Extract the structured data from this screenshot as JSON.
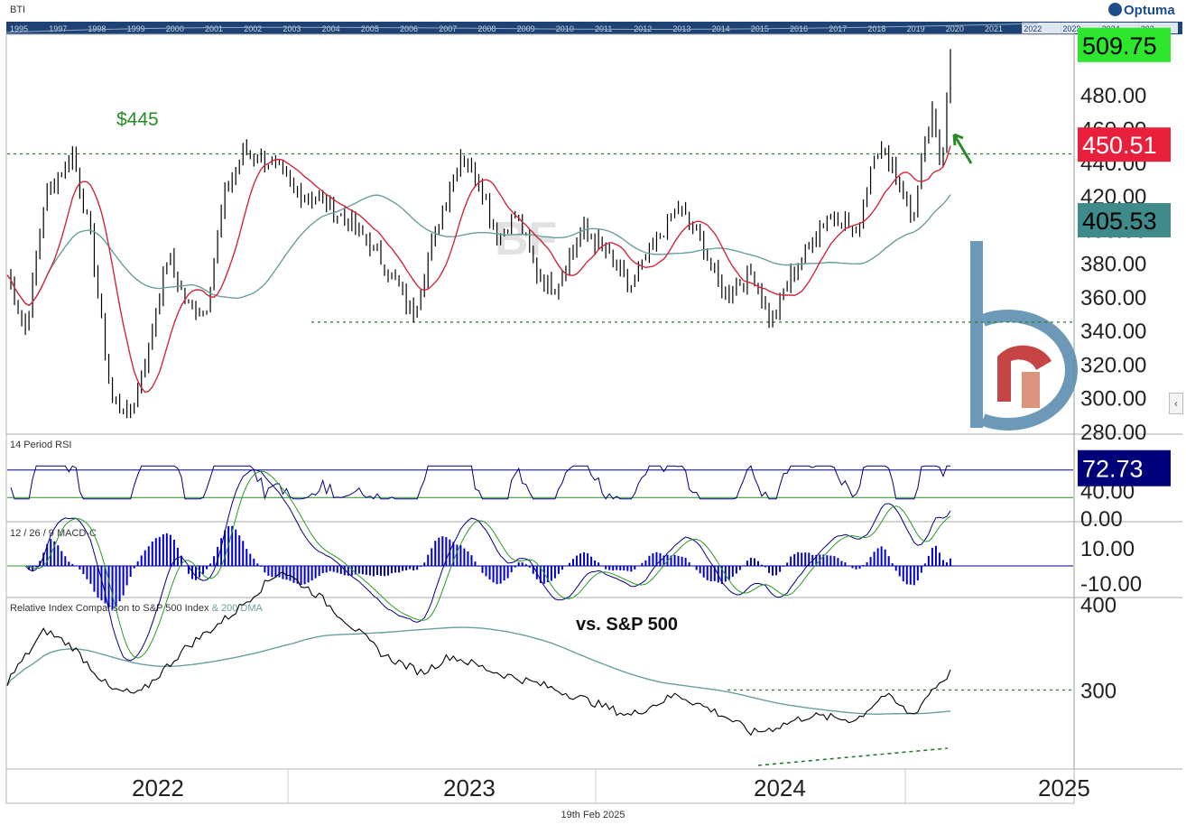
{
  "header": {
    "symbol": "BTI",
    "logo": "Optuma"
  },
  "footer": {
    "date": "19th Feb 2025"
  },
  "overview_years": [
    "1995",
    "1997",
    "1998",
    "1999",
    "2000",
    "2001",
    "2002",
    "2003",
    "2004",
    "2005",
    "2006",
    "2007",
    "2008",
    "2009",
    "2010",
    "2011",
    "2012",
    "2013",
    "2014",
    "2015",
    "2016",
    "2017",
    "2018",
    "2019",
    "2020",
    "2021",
    "2022",
    "2023",
    "2024",
    "202"
  ],
  "chart_data": [
    {
      "type": "line",
      "panel": "price",
      "title": "BTI",
      "series": [],
      "y_axis": {
        "ticks": [
          "300.00",
          "320.00",
          "340.00",
          "360.00",
          "380.00",
          "400.00",
          "420.00",
          "440.00",
          "460.00",
          "480.00",
          "280.00"
        ],
        "ylim": [
          280,
          515
        ]
      },
      "tags": [
        {
          "value": "509.75",
          "color": "#2ee62e",
          "text_color": "#000000"
        },
        {
          "value": "450.51",
          "color": "#e8203c",
          "text_color": "#ffffff"
        },
        {
          "value": "405.53",
          "color": "#3f8a8a",
          "text_color": "#000000"
        }
      ],
      "annotations": [
        {
          "text": "$445",
          "level": 445
        }
      ],
      "levels": [
        445,
        345
      ],
      "x_labels": [
        "2022",
        "2023",
        "2024",
        "2025"
      ]
    },
    {
      "type": "line",
      "panel": "rsi",
      "title": "14 Period RSI",
      "y_axis": {
        "ticks": [
          "80.00",
          "40.00",
          "0.00"
        ]
      },
      "levels": [
        70,
        30
      ],
      "tags": [
        {
          "value": "72.73",
          "color": "#00007a",
          "text_color": "#ffffff"
        }
      ]
    },
    {
      "type": "bar",
      "panel": "macd",
      "title": "12 / 26 / 9 MACD-C",
      "y_axis": {
        "ticks": [
          "10.00",
          "-10.00"
        ]
      }
    },
    {
      "type": "line",
      "panel": "relative",
      "title": "Relative Index Comparison to S&P 500 Index",
      "title_suffix": "& 200 DMA",
      "annotation": "vs. S&P 500",
      "y_axis": {
        "ticks": [
          "400",
          "300"
        ]
      },
      "level": 300
    }
  ],
  "colors": {
    "price": "#000000",
    "ma_fast": "#d0283c",
    "ma_slow": "#6a9e9e",
    "level": "#2a7a2a",
    "macd_hist": "#0000cc",
    "rsi": "#000080"
  }
}
